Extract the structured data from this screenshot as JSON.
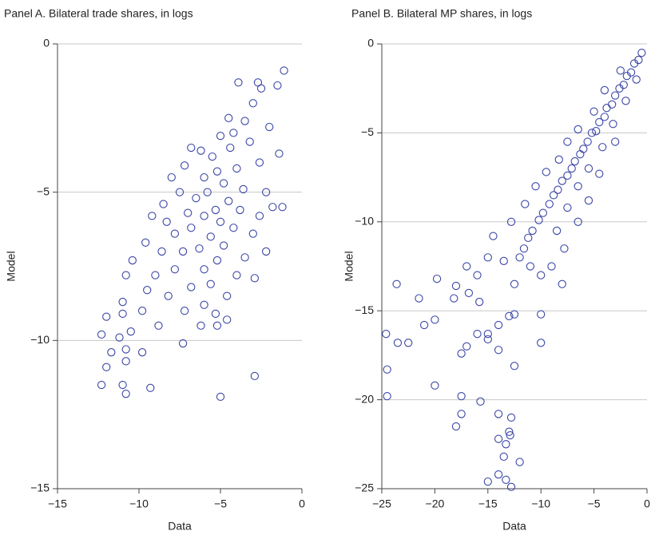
{
  "chart_data": [
    {
      "type": "scatter",
      "title": "Panel A. Bilateral trade shares, in logs",
      "xlabel": "Data",
      "ylabel": "Model",
      "color": "#3b46a6",
      "grid": true,
      "xlim": [
        -15,
        0
      ],
      "ylim": [
        -15,
        0
      ],
      "xticks": [
        {
          "value": -15,
          "label": "−15"
        },
        {
          "value": -10,
          "label": "−10"
        },
        {
          "value": -5,
          "label": "−5"
        },
        0
      ],
      "yticks": [
        0,
        {
          "value": -5,
          "label": "−5"
        },
        {
          "value": -10,
          "label": "−10"
        },
        {
          "value": -15,
          "label": "−15"
        }
      ],
      "x": [
        -1.1,
        -1.5,
        -2.7,
        -3.9,
        -2.5,
        -3.0,
        -4.5,
        -1.4,
        -2.0,
        -3.5,
        -4.2,
        -5.0,
        -4.4,
        -5.5,
        -6.2,
        -6.8,
        -3.2,
        -2.6,
        -4.0,
        -5.2,
        -6.0,
        -7.2,
        -8.0,
        -4.8,
        -3.6,
        -2.2,
        -5.8,
        -6.5,
        -7.5,
        -8.5,
        -4.5,
        -3.8,
        -5.3,
        -6.0,
        -7.0,
        -1.2,
        -1.8,
        -2.6,
        -9.2,
        -8.3,
        -5.0,
        -4.2,
        -3.0,
        -6.8,
        -7.8,
        -9.6,
        -5.6,
        -4.8,
        -6.3,
        -7.3,
        -8.6,
        -10.4,
        -3.5,
        -2.2,
        -5.2,
        -6.0,
        -7.8,
        -9.0,
        -10.8,
        -4.0,
        -2.9,
        -5.6,
        -6.8,
        -8.2,
        -9.5,
        -11.0,
        -4.6,
        -6.0,
        -7.2,
        -9.8,
        -11.0,
        -12.0,
        -5.3,
        -4.6,
        -8.8,
        -10.5,
        -6.2,
        -5.2,
        -12.3,
        -11.2,
        -7.3,
        -10.8,
        -11.7,
        -9.8,
        -12.0,
        -10.8,
        -2.9,
        -12.3,
        -11.0,
        -9.3,
        -10.8,
        -5.0
      ],
      "y": [
        -0.9,
        -1.4,
        -1.3,
        -1.3,
        -1.5,
        -2.0,
        -2.5,
        -3.7,
        -2.8,
        -2.6,
        -3.0,
        -3.1,
        -3.5,
        -3.8,
        -3.6,
        -3.5,
        -3.3,
        -4.0,
        -4.2,
        -4.3,
        -4.5,
        -4.1,
        -4.5,
        -4.7,
        -4.9,
        -5.0,
        -5.0,
        -5.2,
        -5.0,
        -5.4,
        -5.3,
        -5.6,
        -5.6,
        -5.8,
        -5.7,
        -5.5,
        -5.5,
        -5.8,
        -5.8,
        -6.0,
        -6.0,
        -6.2,
        -6.4,
        -6.2,
        -6.4,
        -6.7,
        -6.5,
        -6.8,
        -6.9,
        -7.0,
        -7.0,
        -7.3,
        -7.2,
        -7.0,
        -7.3,
        -7.6,
        -7.6,
        -7.8,
        -7.8,
        -7.8,
        -7.9,
        -8.1,
        -8.2,
        -8.5,
        -8.3,
        -8.7,
        -8.5,
        -8.8,
        -9.0,
        -9.0,
        -9.1,
        -9.2,
        -9.1,
        -9.3,
        -9.5,
        -9.7,
        -9.5,
        -9.5,
        -9.8,
        -9.9,
        -10.1,
        -10.3,
        -10.4,
        -10.4,
        -10.9,
        -10.7,
        -11.2,
        -11.5,
        -11.5,
        -11.6,
        -11.8,
        -11.9
      ]
    },
    {
      "type": "scatter",
      "title": "Panel B. Bilateral MP shares, in logs",
      "xlabel": "Data",
      "ylabel": "Model",
      "color": "#3b46a6",
      "grid": true,
      "xlim": [
        -25,
        0
      ],
      "ylim": [
        -25,
        0
      ],
      "xticks": [
        {
          "value": -25,
          "label": "−25"
        },
        {
          "value": -20,
          "label": "−20"
        },
        {
          "value": -15,
          "label": "−15"
        },
        {
          "value": -10,
          "label": "−10"
        },
        {
          "value": -5,
          "label": "−5"
        },
        0
      ],
      "yticks": [
        0,
        {
          "value": -5,
          "label": "−5"
        },
        {
          "value": -10,
          "label": "−10"
        },
        {
          "value": -15,
          "label": "−15"
        },
        {
          "value": -20,
          "label": "−20"
        },
        {
          "value": -25,
          "label": "−25"
        }
      ],
      "x": [
        -0.5,
        -0.8,
        -1.2,
        -1.5,
        -1.9,
        -2.2,
        -2.6,
        -3.0,
        -3.3,
        -3.8,
        -4.0,
        -4.5,
        -4.8,
        -5.2,
        -5.6,
        -6.0,
        -6.3,
        -6.8,
        -7.1,
        -7.5,
        -8.0,
        -8.4,
        -8.8,
        -9.2,
        -9.8,
        -10.2,
        -10.8,
        -11.2,
        -11.6,
        -12.0,
        -1.0,
        -2.0,
        -3.2,
        -4.2,
        -5.5,
        -6.5,
        -7.5,
        -8.5,
        -2.5,
        -4.0,
        -5.0,
        -6.5,
        -7.5,
        -8.3,
        -9.5,
        -10.5,
        -3.0,
        -4.5,
        -5.5,
        -6.5,
        -7.8,
        -9.0,
        -10.0,
        -8.0,
        -11.0,
        -12.5,
        -13.5,
        -15.0,
        -14.5,
        -12.8,
        -11.5,
        -16.0,
        -17.0,
        -18.0,
        -19.8,
        -21.5,
        -23.6,
        -16.8,
        -18.2,
        -15.8,
        -13.0,
        -14.0,
        -15.0,
        -12.5,
        -10.0,
        -10.0,
        -16.0,
        -17.5,
        -17.0,
        -15.0,
        -14.0,
        -12.5,
        -20.0,
        -21.0,
        -22.5,
        -23.5,
        -24.6,
        -24.5,
        -24.5,
        -20.0,
        -17.5,
        -15.7,
        -14.0,
        -12.8,
        -13.0,
        -14.0,
        -13.5,
        -12.0,
        -14.0,
        -13.3,
        -15.0,
        -12.8,
        -18.0,
        -17.5,
        -13.3,
        -12.9
      ],
      "y": [
        -0.5,
        -0.9,
        -1.1,
        -1.6,
        -1.8,
        -2.3,
        -2.5,
        -2.9,
        -3.4,
        -3.6,
        -4.1,
        -4.4,
        -4.9,
        -5.0,
        -5.5,
        -5.9,
        -6.2,
        -6.6,
        -7.0,
        -7.4,
        -7.7,
        -8.2,
        -8.5,
        -9.0,
        -9.5,
        -9.9,
        -10.5,
        -10.9,
        -11.5,
        -12.0,
        -2.0,
        -3.2,
        -4.5,
        -5.8,
        -7.0,
        -8.0,
        -9.2,
        -10.5,
        -1.5,
        -2.6,
        -3.8,
        -4.8,
        -5.5,
        -6.5,
        -7.2,
        -8.0,
        -5.5,
        -7.3,
        -8.8,
        -10.0,
        -11.5,
        -12.5,
        -13.0,
        -13.5,
        -12.5,
        -13.5,
        -12.2,
        -12.0,
        -10.8,
        -10.0,
        -9.0,
        -13.0,
        -12.5,
        -13.6,
        -13.2,
        -14.3,
        -13.5,
        -14.0,
        -14.3,
        -14.5,
        -15.3,
        -15.8,
        -16.3,
        -15.2,
        -15.2,
        -16.8,
        -16.3,
        -17.4,
        -17.0,
        -16.6,
        -17.2,
        -18.1,
        -15.5,
        -15.8,
        -16.8,
        -16.8,
        -16.3,
        -18.3,
        -19.8,
        -19.2,
        -19.8,
        -20.1,
        -20.8,
        -21.0,
        -21.8,
        -22.2,
        -23.2,
        -23.5,
        -24.2,
        -24.5,
        -24.6,
        -24.9,
        -21.5,
        -20.8,
        -22.5,
        -22.0
      ]
    }
  ]
}
